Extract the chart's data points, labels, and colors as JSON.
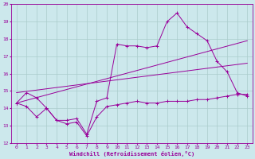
{
  "xlabel": "Windchill (Refroidissement éolien,°C)",
  "bg_color": "#cce8ec",
  "line_color": "#990099",
  "grid_color": "#aacccc",
  "xlim": [
    -0.5,
    23.5
  ],
  "ylim": [
    12,
    20
  ],
  "xticks": [
    0,
    1,
    2,
    3,
    4,
    5,
    6,
    7,
    8,
    9,
    10,
    11,
    12,
    13,
    14,
    15,
    16,
    17,
    18,
    19,
    20,
    21,
    22,
    23
  ],
  "yticks": [
    12,
    13,
    14,
    15,
    16,
    17,
    18,
    19,
    20
  ],
  "line1_x": [
    0,
    1,
    2,
    3,
    4,
    5,
    6,
    7,
    8,
    9,
    10,
    11,
    12,
    13,
    14,
    15,
    16,
    17,
    18,
    19,
    20,
    21,
    22,
    23
  ],
  "line1_y": [
    14.3,
    14.9,
    14.6,
    14.0,
    13.3,
    13.3,
    13.4,
    12.5,
    14.4,
    14.6,
    17.7,
    17.6,
    17.6,
    17.5,
    17.6,
    19.0,
    19.5,
    18.7,
    18.3,
    17.9,
    16.7,
    16.1,
    14.9,
    14.7
  ],
  "line2_x": [
    0,
    23
  ],
  "line2_y": [
    14.3,
    17.9
  ],
  "line3_x": [
    0,
    23
  ],
  "line3_y": [
    14.9,
    16.6
  ],
  "line4_x": [
    0,
    1,
    2,
    3,
    4,
    5,
    6,
    7,
    8,
    9,
    10,
    11,
    12,
    13,
    14,
    15,
    16,
    17,
    18,
    19,
    20,
    21,
    22,
    23
  ],
  "line4_y": [
    14.3,
    14.1,
    13.5,
    14.0,
    13.3,
    13.1,
    13.2,
    12.4,
    13.5,
    14.1,
    14.2,
    14.3,
    14.4,
    14.3,
    14.3,
    14.4,
    14.4,
    14.4,
    14.5,
    14.5,
    14.6,
    14.7,
    14.8,
    14.8
  ]
}
